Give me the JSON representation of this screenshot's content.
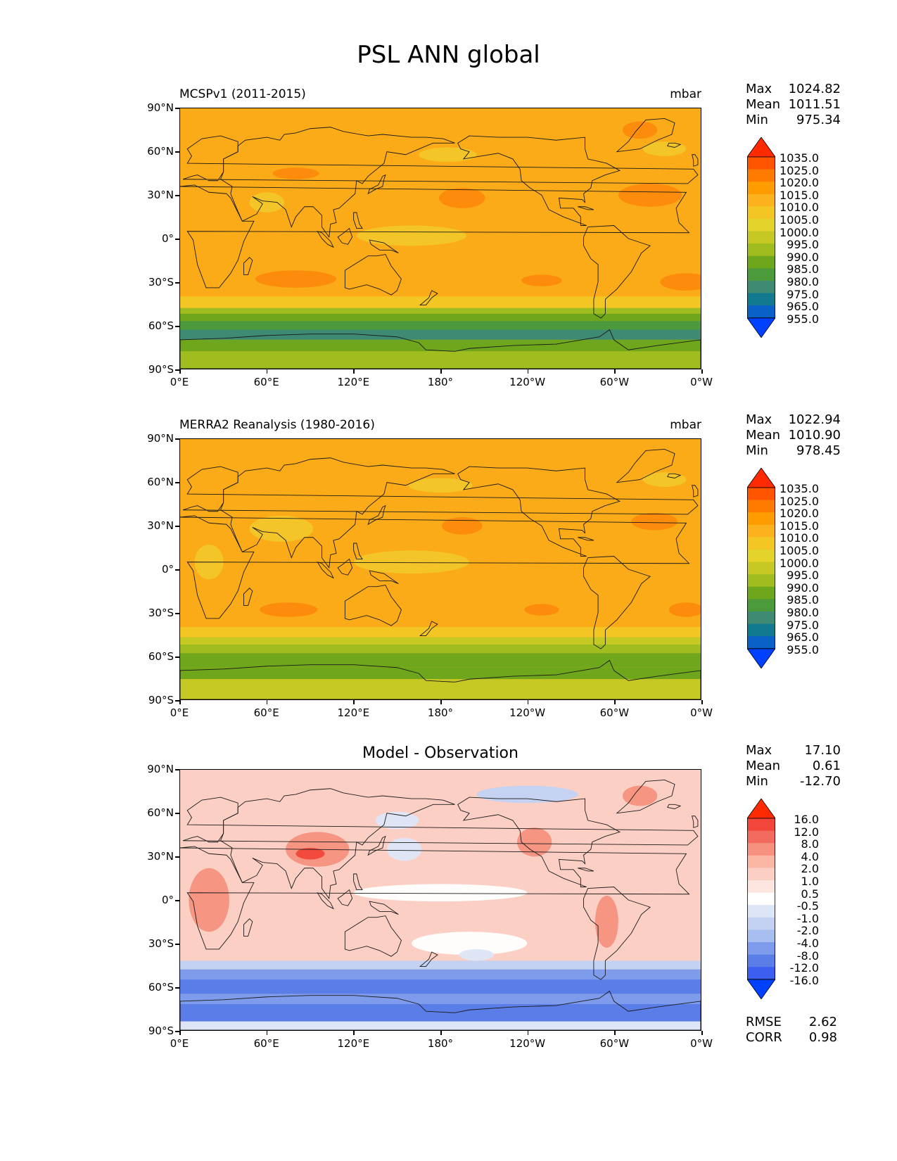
{
  "title": "PSL ANN global",
  "panels": [
    {
      "id": "model",
      "subtitle": "MCSPv1 (2011-2015)",
      "units": "mbar",
      "stats": {
        "max_label": "Max",
        "max": "1024.82",
        "mean_label": "Mean",
        "mean": "1011.51",
        "min_label": "Min",
        "min": "975.34"
      },
      "colorbar_levels": [
        "1035.0",
        "1025.0",
        "1020.0",
        "1015.0",
        "1010.0",
        "1005.0",
        "1000.0",
        "995.0",
        "990.0",
        "985.0",
        "980.0",
        "975.0",
        "965.0",
        "955.0"
      ],
      "colorbar_colors": [
        "#ff2a00",
        "#ff5500",
        "#ff7b00",
        "#ff9d00",
        "#fbb21c",
        "#f3c624",
        "#e3d32b",
        "#c6c923",
        "#9fbd1f",
        "#6ea71c",
        "#4c9a3c",
        "#3f8a72",
        "#117a90",
        "#0a62c8",
        "#0040ff"
      ],
      "background": "#fbab18",
      "blobs": [
        {
          "name": "subtropical-high-north-pacific",
          "lon": 195,
          "lat": 28,
          "rx": 16,
          "ry": 7,
          "color": "#fd8a0c"
        },
        {
          "name": "subtropical-high-north-atlantic",
          "lon": 325,
          "lat": 30,
          "rx": 22,
          "ry": 8,
          "color": "#fd8a0c"
        },
        {
          "name": "subtropical-high-south-indian",
          "lon": 80,
          "lat": -28,
          "rx": 28,
          "ry": 6,
          "color": "#fd8a0c"
        },
        {
          "name": "subtropical-high-south-pacific",
          "lon": 250,
          "lat": -29,
          "rx": 14,
          "ry": 4,
          "color": "#fd8a0c"
        },
        {
          "name": "subtropical-high-south-atlantic",
          "lon": 350,
          "lat": -30,
          "rx": 18,
          "ry": 6,
          "color": "#fd8a0c"
        },
        {
          "name": "siberian-high",
          "lon": 80,
          "lat": 45,
          "rx": 16,
          "ry": 4,
          "color": "#fd8a0c"
        },
        {
          "name": "equatorial-trough",
          "lon": 160,
          "lat": 2,
          "rx": 38,
          "ry": 7,
          "color": "#f2c62a"
        },
        {
          "name": "asian-low",
          "lon": 60,
          "lat": 25,
          "rx": 12,
          "ry": 7,
          "color": "#f2c62a"
        },
        {
          "name": "aleutian-low",
          "lon": 185,
          "lat": 58,
          "rx": 20,
          "ry": 5,
          "color": "#f2c62a"
        },
        {
          "name": "icelandic-low",
          "lon": 335,
          "lat": 62,
          "rx": 15,
          "ry": 5,
          "color": "#f2c62a"
        },
        {
          "name": "greenland-high",
          "lon": 318,
          "lat": 75,
          "rx": 12,
          "ry": 6,
          "color": "#fd8a0c"
        }
      ],
      "southern_bands": [
        {
          "lat1": -40,
          "lat2": -48,
          "color": "#f3c624"
        },
        {
          "lat1": -48,
          "lat2": -52,
          "color": "#9fbd1f"
        },
        {
          "lat1": -52,
          "lat2": -57,
          "color": "#6ea71c"
        },
        {
          "lat1": -57,
          "lat2": -63,
          "color": "#4c9a3c"
        },
        {
          "lat1": -63,
          "lat2": -70,
          "color": "#3f8a72"
        },
        {
          "lat1": -70,
          "lat2": -78,
          "color": "#6ea71c"
        },
        {
          "lat1": -78,
          "lat2": -90,
          "color": "#9fbd1f"
        }
      ]
    },
    {
      "id": "obs",
      "subtitle": "MERRA2 Reanalysis (1980-2016)",
      "units": "mbar",
      "stats": {
        "max_label": "Max",
        "max": "1022.94",
        "mean_label": "Mean",
        "mean": "1010.90",
        "min_label": "Min",
        "min": "978.45"
      },
      "colorbar_levels": [
        "1035.0",
        "1025.0",
        "1020.0",
        "1015.0",
        "1010.0",
        "1005.0",
        "1000.0",
        "995.0",
        "990.0",
        "985.0",
        "980.0",
        "975.0",
        "965.0",
        "955.0"
      ],
      "colorbar_colors": [
        "#ff2a00",
        "#ff5500",
        "#ff7b00",
        "#ff9d00",
        "#fbb21c",
        "#f3c624",
        "#e3d32b",
        "#c6c923",
        "#9fbd1f",
        "#6ea71c",
        "#4c9a3c",
        "#3f8a72",
        "#117a90",
        "#0a62c8",
        "#0040ff"
      ],
      "background": "#fbab18",
      "blobs": [
        {
          "name": "subtropical-high-north-pacific",
          "lon": 195,
          "lat": 30,
          "rx": 14,
          "ry": 6,
          "color": "#fd8a0c"
        },
        {
          "name": "subtropical-high-north-atlantic",
          "lon": 328,
          "lat": 33,
          "rx": 16,
          "ry": 6,
          "color": "#fd8a0c"
        },
        {
          "name": "subtropical-high-south-indian",
          "lon": 75,
          "lat": -28,
          "rx": 20,
          "ry": 5,
          "color": "#fd8a0c"
        },
        {
          "name": "subtropical-high-south-pacific",
          "lon": 250,
          "lat": -28,
          "rx": 12,
          "ry": 4,
          "color": "#fd8a0c"
        },
        {
          "name": "subtropical-high-south-atlantic",
          "lon": 350,
          "lat": -28,
          "rx": 12,
          "ry": 5,
          "color": "#fd8a0c"
        },
        {
          "name": "equatorial-trough",
          "lon": 160,
          "lat": 5,
          "rx": 40,
          "ry": 8,
          "color": "#f2c62a"
        },
        {
          "name": "asian-low",
          "lon": 70,
          "lat": 28,
          "rx": 22,
          "ry": 9,
          "color": "#f2c62a"
        },
        {
          "name": "africa-low",
          "lon": 20,
          "lat": 5,
          "rx": 10,
          "ry": 12,
          "color": "#f2c62a"
        },
        {
          "name": "aleutian-low",
          "lon": 180,
          "lat": 58,
          "rx": 22,
          "ry": 5,
          "color": "#f2c62a"
        },
        {
          "name": "icelandic-low",
          "lon": 335,
          "lat": 62,
          "rx": 15,
          "ry": 5,
          "color": "#f2c62a"
        }
      ],
      "southern_bands": [
        {
          "lat1": -40,
          "lat2": -47,
          "color": "#f3c624"
        },
        {
          "lat1": -47,
          "lat2": -52,
          "color": "#c6c923"
        },
        {
          "lat1": -52,
          "lat2": -58,
          "color": "#9fbd1f"
        },
        {
          "lat1": -58,
          "lat2": -68,
          "color": "#6ea71c"
        },
        {
          "lat1": -68,
          "lat2": -76,
          "color": "#6ea71c"
        },
        {
          "lat1": -76,
          "lat2": -90,
          "color": "#c6c923"
        }
      ]
    },
    {
      "id": "diff",
      "center_title": "Model - Observation",
      "stats": {
        "max_label": "Max",
        "max": "17.10",
        "mean_label": "Mean",
        "mean": "0.61",
        "min_label": "Min",
        "min": "-12.70"
      },
      "colorbar_levels": [
        "16.0",
        "12.0",
        "8.0",
        "4.0",
        "2.0",
        "1.0",
        "0.5",
        "-0.5",
        "-1.0",
        "-2.0",
        "-4.0",
        "-8.0",
        "-12.0",
        "-16.0"
      ],
      "colorbar_colors": [
        "#ff2a00",
        "#f2463a",
        "#f36a5e",
        "#f7917f",
        "#fab5a5",
        "#fccfc4",
        "#fde6df",
        "#ffffff",
        "#dde6f7",
        "#c3d2f3",
        "#a8bdf0",
        "#7f9cec",
        "#5b7de8",
        "#3d5fef",
        "#0040ff"
      ],
      "background": "#fccfc4",
      "blobs": [
        {
          "name": "asia-positive",
          "lon": 95,
          "lat": 35,
          "rx": 22,
          "ry": 12,
          "color": "#f7917f"
        },
        {
          "name": "tibet-max",
          "lon": 90,
          "lat": 32,
          "rx": 10,
          "ry": 4,
          "color": "#f2463a"
        },
        {
          "name": "africa-positive",
          "lon": 20,
          "lat": 0,
          "rx": 14,
          "ry": 22,
          "color": "#f7917f"
        },
        {
          "name": "south-america-positive",
          "lon": 295,
          "lat": -15,
          "rx": 8,
          "ry": 18,
          "color": "#f7917f"
        },
        {
          "name": "rockies-positive",
          "lon": 245,
          "lat": 40,
          "rx": 12,
          "ry": 10,
          "color": "#f7917f"
        },
        {
          "name": "greenland-positive",
          "lon": 318,
          "lat": 72,
          "rx": 12,
          "ry": 7,
          "color": "#f7917f"
        },
        {
          "name": "north-pacific-negative",
          "lon": 155,
          "lat": 35,
          "rx": 12,
          "ry": 8,
          "color": "#dde6f7"
        },
        {
          "name": "arctic-negative",
          "lon": 240,
          "lat": 73,
          "rx": 35,
          "ry": 6,
          "color": "#c3d2f3"
        },
        {
          "name": "equator-white",
          "lon": 180,
          "lat": 5,
          "rx": 60,
          "ry": 6,
          "color": "#ffffff"
        },
        {
          "name": "south-pacific-white",
          "lon": 200,
          "lat": -30,
          "rx": 40,
          "ry": 8,
          "color": "#ffffff"
        },
        {
          "name": "south-pacific-negative",
          "lon": 205,
          "lat": -38,
          "rx": 12,
          "ry": 4,
          "color": "#dde6f7"
        },
        {
          "name": "east-asia-negative",
          "lon": 150,
          "lat": 55,
          "rx": 15,
          "ry": 6,
          "color": "#dde6f7"
        }
      ],
      "southern_bands": [
        {
          "lat1": -42,
          "lat2": -48,
          "color": "#c3d2f3"
        },
        {
          "lat1": -48,
          "lat2": -55,
          "color": "#7f9cec"
        },
        {
          "lat1": -55,
          "lat2": -65,
          "color": "#5b7de8"
        },
        {
          "lat1": -65,
          "lat2": -72,
          "color": "#7f9cec"
        },
        {
          "lat1": -72,
          "lat2": -84,
          "color": "#5b7de8"
        },
        {
          "lat1": -84,
          "lat2": -90,
          "color": "#dde6f7"
        }
      ],
      "metrics": {
        "rmse_label": "RMSE",
        "rmse": "2.62",
        "corr_label": "CORR",
        "corr": "0.98"
      }
    }
  ],
  "axes": {
    "lat_ticks": [
      "90°N",
      "60°N",
      "30°N",
      "0°",
      "30°S",
      "60°S",
      "90°S"
    ],
    "lon_ticks": [
      "0°E",
      "60°E",
      "120°E",
      "180°",
      "120°W",
      "60°W",
      "0°W"
    ]
  }
}
